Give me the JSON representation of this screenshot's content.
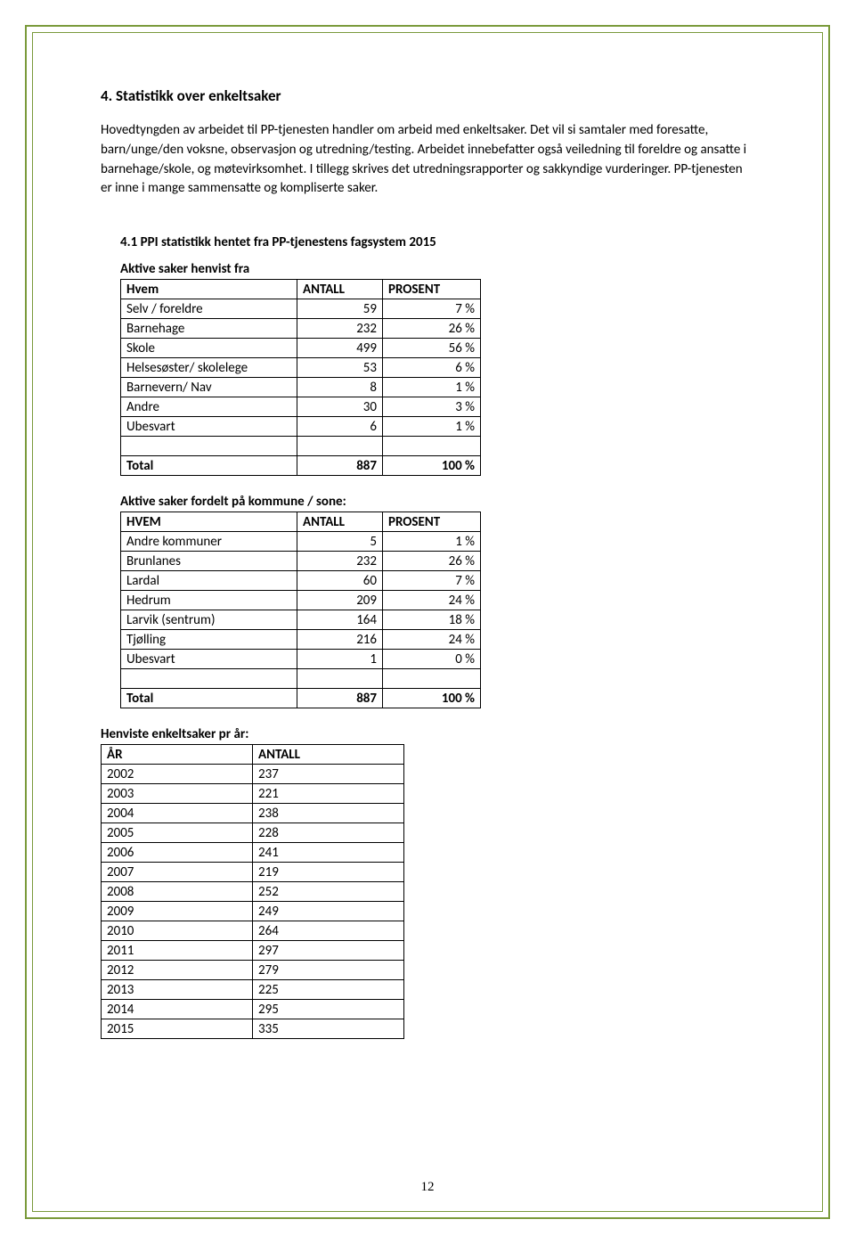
{
  "heading": "4. Statistikk over enkeltsaker",
  "body": "Hovedtyngden av arbeidet til PP-tjenesten handler om arbeid med enkeltsaker. Det vil si samtaler med foresatte, barn/unge/den voksne, observasjon og utredning/testing. Arbeidet innebefatter også veiledning til foreldre og ansatte i barnehage/skole, og møtevirksomhet. I tillegg skrives det utredningsrapporter og sakkyndige vurderinger. PP-tjenesten er inne i mange sammensatte og kompliserte saker.",
  "subheading": "4.1 PPI statistikk hentet fra PP-tjenestens fagsystem 2015",
  "table1": {
    "title": "Aktive saker henvist fra",
    "headers": [
      "Hvem",
      "ANTALL",
      "PROSENT"
    ],
    "rows": [
      [
        "Selv / foreldre",
        "59",
        "7 %"
      ],
      [
        "Barnehage",
        "232",
        "26 %"
      ],
      [
        "Skole",
        "499",
        "56 %"
      ],
      [
        "Helsesøster/ skolelege",
        "53",
        "6 %"
      ],
      [
        "Barnevern/ Nav",
        "8",
        "1 %"
      ],
      [
        "Andre",
        "30",
        "3 %"
      ],
      [
        "Ubesvart",
        "6",
        "1 %"
      ]
    ],
    "total": [
      "Total",
      "887",
      "100 %"
    ]
  },
  "table2": {
    "title": "Aktive saker fordelt på kommune / sone:",
    "headers": [
      "HVEM",
      "ANTALL",
      "PROSENT"
    ],
    "rows": [
      [
        "Andre kommuner",
        "5",
        "1 %"
      ],
      [
        "Brunlanes",
        "232",
        "26 %"
      ],
      [
        "Lardal",
        "60",
        "7 %"
      ],
      [
        "Hedrum",
        "209",
        "24 %"
      ],
      [
        "Larvik (sentrum)",
        "164",
        "18 %"
      ],
      [
        "Tjølling",
        "216",
        "24 %"
      ],
      [
        "Ubesvart",
        "1",
        "0 %"
      ]
    ],
    "total": [
      "Total",
      "887",
      "100 %"
    ]
  },
  "table3": {
    "title": "Henviste enkeltsaker pr år:",
    "headers": [
      "ÅR",
      "ANTALL"
    ],
    "rows": [
      [
        "2002",
        "237"
      ],
      [
        "2003",
        "221"
      ],
      [
        "2004",
        "238"
      ],
      [
        "2005",
        "228"
      ],
      [
        "2006",
        "241"
      ],
      [
        "2007",
        "219"
      ],
      [
        "2008",
        "252"
      ],
      [
        "2009",
        "249"
      ],
      [
        "2010",
        "264"
      ],
      [
        "2011",
        "297"
      ],
      [
        "2012",
        "279"
      ],
      [
        "2013",
        "225"
      ],
      [
        "2014",
        "295"
      ],
      [
        "2015",
        "335"
      ]
    ]
  },
  "page_number": "12"
}
